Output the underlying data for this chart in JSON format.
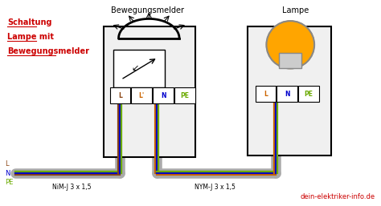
{
  "bg": "#ffffff",
  "text_bewegungsmelder": "Bewegungsmelder",
  "text_lampe": "Lampe",
  "text_schaltung": "Schaltung",
  "text_lampe_mit": "Lampe mit",
  "text_bewegungsmelder2": "Bewegungsmelder",
  "cable1_label": "NiM-J 3 x 1,5",
  "cable2_label": "NYM-J 3 x 1,5",
  "website": "dein-elektriker-info.de",
  "term_labels_sensor": [
    "L",
    "L'",
    "N",
    "PE"
  ],
  "term_labels_lamp": [
    "L",
    "N",
    "PE"
  ],
  "col_brown": "#8B4513",
  "col_blue": "#0000cc",
  "col_green": "#6aaa00",
  "col_orange": "#cc6600",
  "col_black": "#111111",
  "col_gray": "#aaaaaa",
  "col_red": "#cc0000",
  "col_light_bg": "#f0f0f0",
  "col_orange_bulb": "#FFA500",
  "col_bulb_outline": "#888888",
  "col_bulb_base": "#cccccc"
}
